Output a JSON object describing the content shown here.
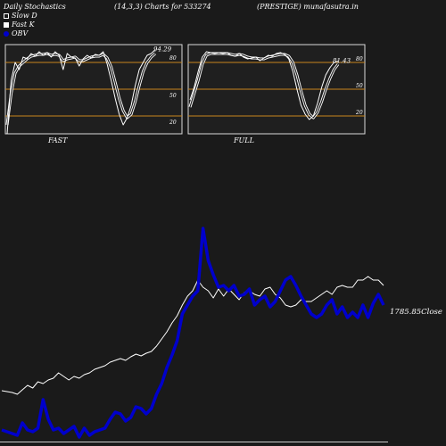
{
  "header": {
    "left": "Daily Stochastics",
    "center": "(14,3,3) Charts for 533274",
    "right": "(PRESTIGE) munafasutra.in"
  },
  "legend": [
    {
      "label": "Slow  D",
      "swatch": "hollow"
    },
    {
      "label": "Fast K",
      "swatch": "white"
    },
    {
      "label": "OBV",
      "swatch": "blue"
    }
  ],
  "colors": {
    "background": "#1a1a1a",
    "panel": "#1f1f1f",
    "level_line": "#c8861e",
    "obv": "#0000cc",
    "close": "#ffffff"
  },
  "panels": {
    "fast_label": "FAST",
    "full_label": "FULL",
    "fast_value": "94.29",
    "full_value": "81.43",
    "levels": [
      "80",
      "50",
      "20"
    ]
  },
  "main": {
    "close_label": "1785.85Close"
  },
  "chart_data": [
    {
      "type": "line",
      "title": "FAST",
      "ylim": [
        0,
        100
      ],
      "levels": [
        80,
        50,
        20
      ],
      "series": [
        {
          "name": "Fast K",
          "values": [
            0,
            60,
            80,
            72,
            86,
            84,
            90,
            87,
            92,
            88,
            91,
            86,
            92,
            88,
            72,
            90,
            86,
            85,
            76,
            84,
            88,
            85,
            89,
            88,
            92,
            78,
            60,
            40,
            22,
            10,
            18,
            32,
            54,
            72,
            80,
            88,
            90,
            94.29
          ]
        },
        {
          "name": "Slow  D",
          "values": [
            10,
            45,
            68,
            76,
            80,
            84,
            87,
            88,
            89,
            89,
            90,
            88,
            89,
            88,
            82,
            84,
            85,
            86,
            82,
            82,
            84,
            86,
            87,
            87,
            89,
            85,
            75,
            58,
            40,
            26,
            18,
            22,
            36,
            54,
            70,
            80,
            86,
            90
          ]
        }
      ]
    },
    {
      "type": "line",
      "title": "FULL",
      "ylim": [
        0,
        100
      ],
      "levels": [
        80,
        50,
        20
      ],
      "series": [
        {
          "name": "Fast K",
          "values": [
            38,
            52,
            70,
            86,
            92,
            91,
            90,
            91,
            90,
            91,
            88,
            87,
            90,
            86,
            84,
            85,
            86,
            82,
            85,
            88,
            87,
            90,
            91,
            89,
            84,
            70,
            50,
            32,
            22,
            16,
            20,
            34,
            52,
            66,
            74,
            80,
            81.43
          ]
        },
        {
          "name": "Slow  D",
          "values": [
            30,
            45,
            60,
            78,
            88,
            90,
            90,
            90,
            90,
            90,
            89,
            88,
            89,
            88,
            86,
            85,
            85,
            84,
            84,
            86,
            87,
            88,
            89,
            89,
            87,
            80,
            66,
            48,
            32,
            22,
            18,
            24,
            36,
            50,
            62,
            72,
            78
          ]
        }
      ]
    },
    {
      "type": "line",
      "title": "",
      "series": [
        {
          "name": "OBV",
          "values": [
            10,
            8,
            6,
            4,
            18,
            10,
            8,
            12,
            44,
            22,
            10,
            12,
            6,
            10,
            14,
            2,
            12,
            4,
            8,
            10,
            12,
            22,
            30,
            28,
            20,
            24,
            36,
            34,
            28,
            34,
            50,
            62,
            80,
            94,
            110,
            140,
            150,
            160,
            166,
            236,
            200,
            184,
            170,
            172,
            166,
            172,
            160,
            162,
            168,
            150,
            156,
            160,
            148,
            154,
            166,
            178,
            182,
            172,
            160,
            150,
            140,
            136,
            140,
            150,
            156,
            140,
            148,
            136,
            142,
            136,
            150,
            136,
            152,
            162,
            150
          ]
        },
        {
          "name": "Close",
          "values": [
            54,
            53,
            52,
            50,
            55,
            60,
            57,
            64,
            62,
            66,
            68,
            74,
            70,
            66,
            70,
            68,
            72,
            74,
            78,
            80,
            82,
            86,
            88,
            90,
            88,
            92,
            95,
            93,
            96,
            98,
            104,
            112,
            120,
            130,
            138,
            150,
            160,
            166,
            178,
            170,
            166,
            158,
            168,
            160,
            168,
            162,
            156,
            164,
            166,
            162,
            160,
            168,
            170,
            162,
            158,
            150,
            148,
            150,
            156,
            154,
            154,
            158,
            162,
            166,
            162,
            170,
            172,
            170,
            170,
            178,
            178,
            182,
            178,
            178,
            172
          ]
        }
      ]
    }
  ]
}
